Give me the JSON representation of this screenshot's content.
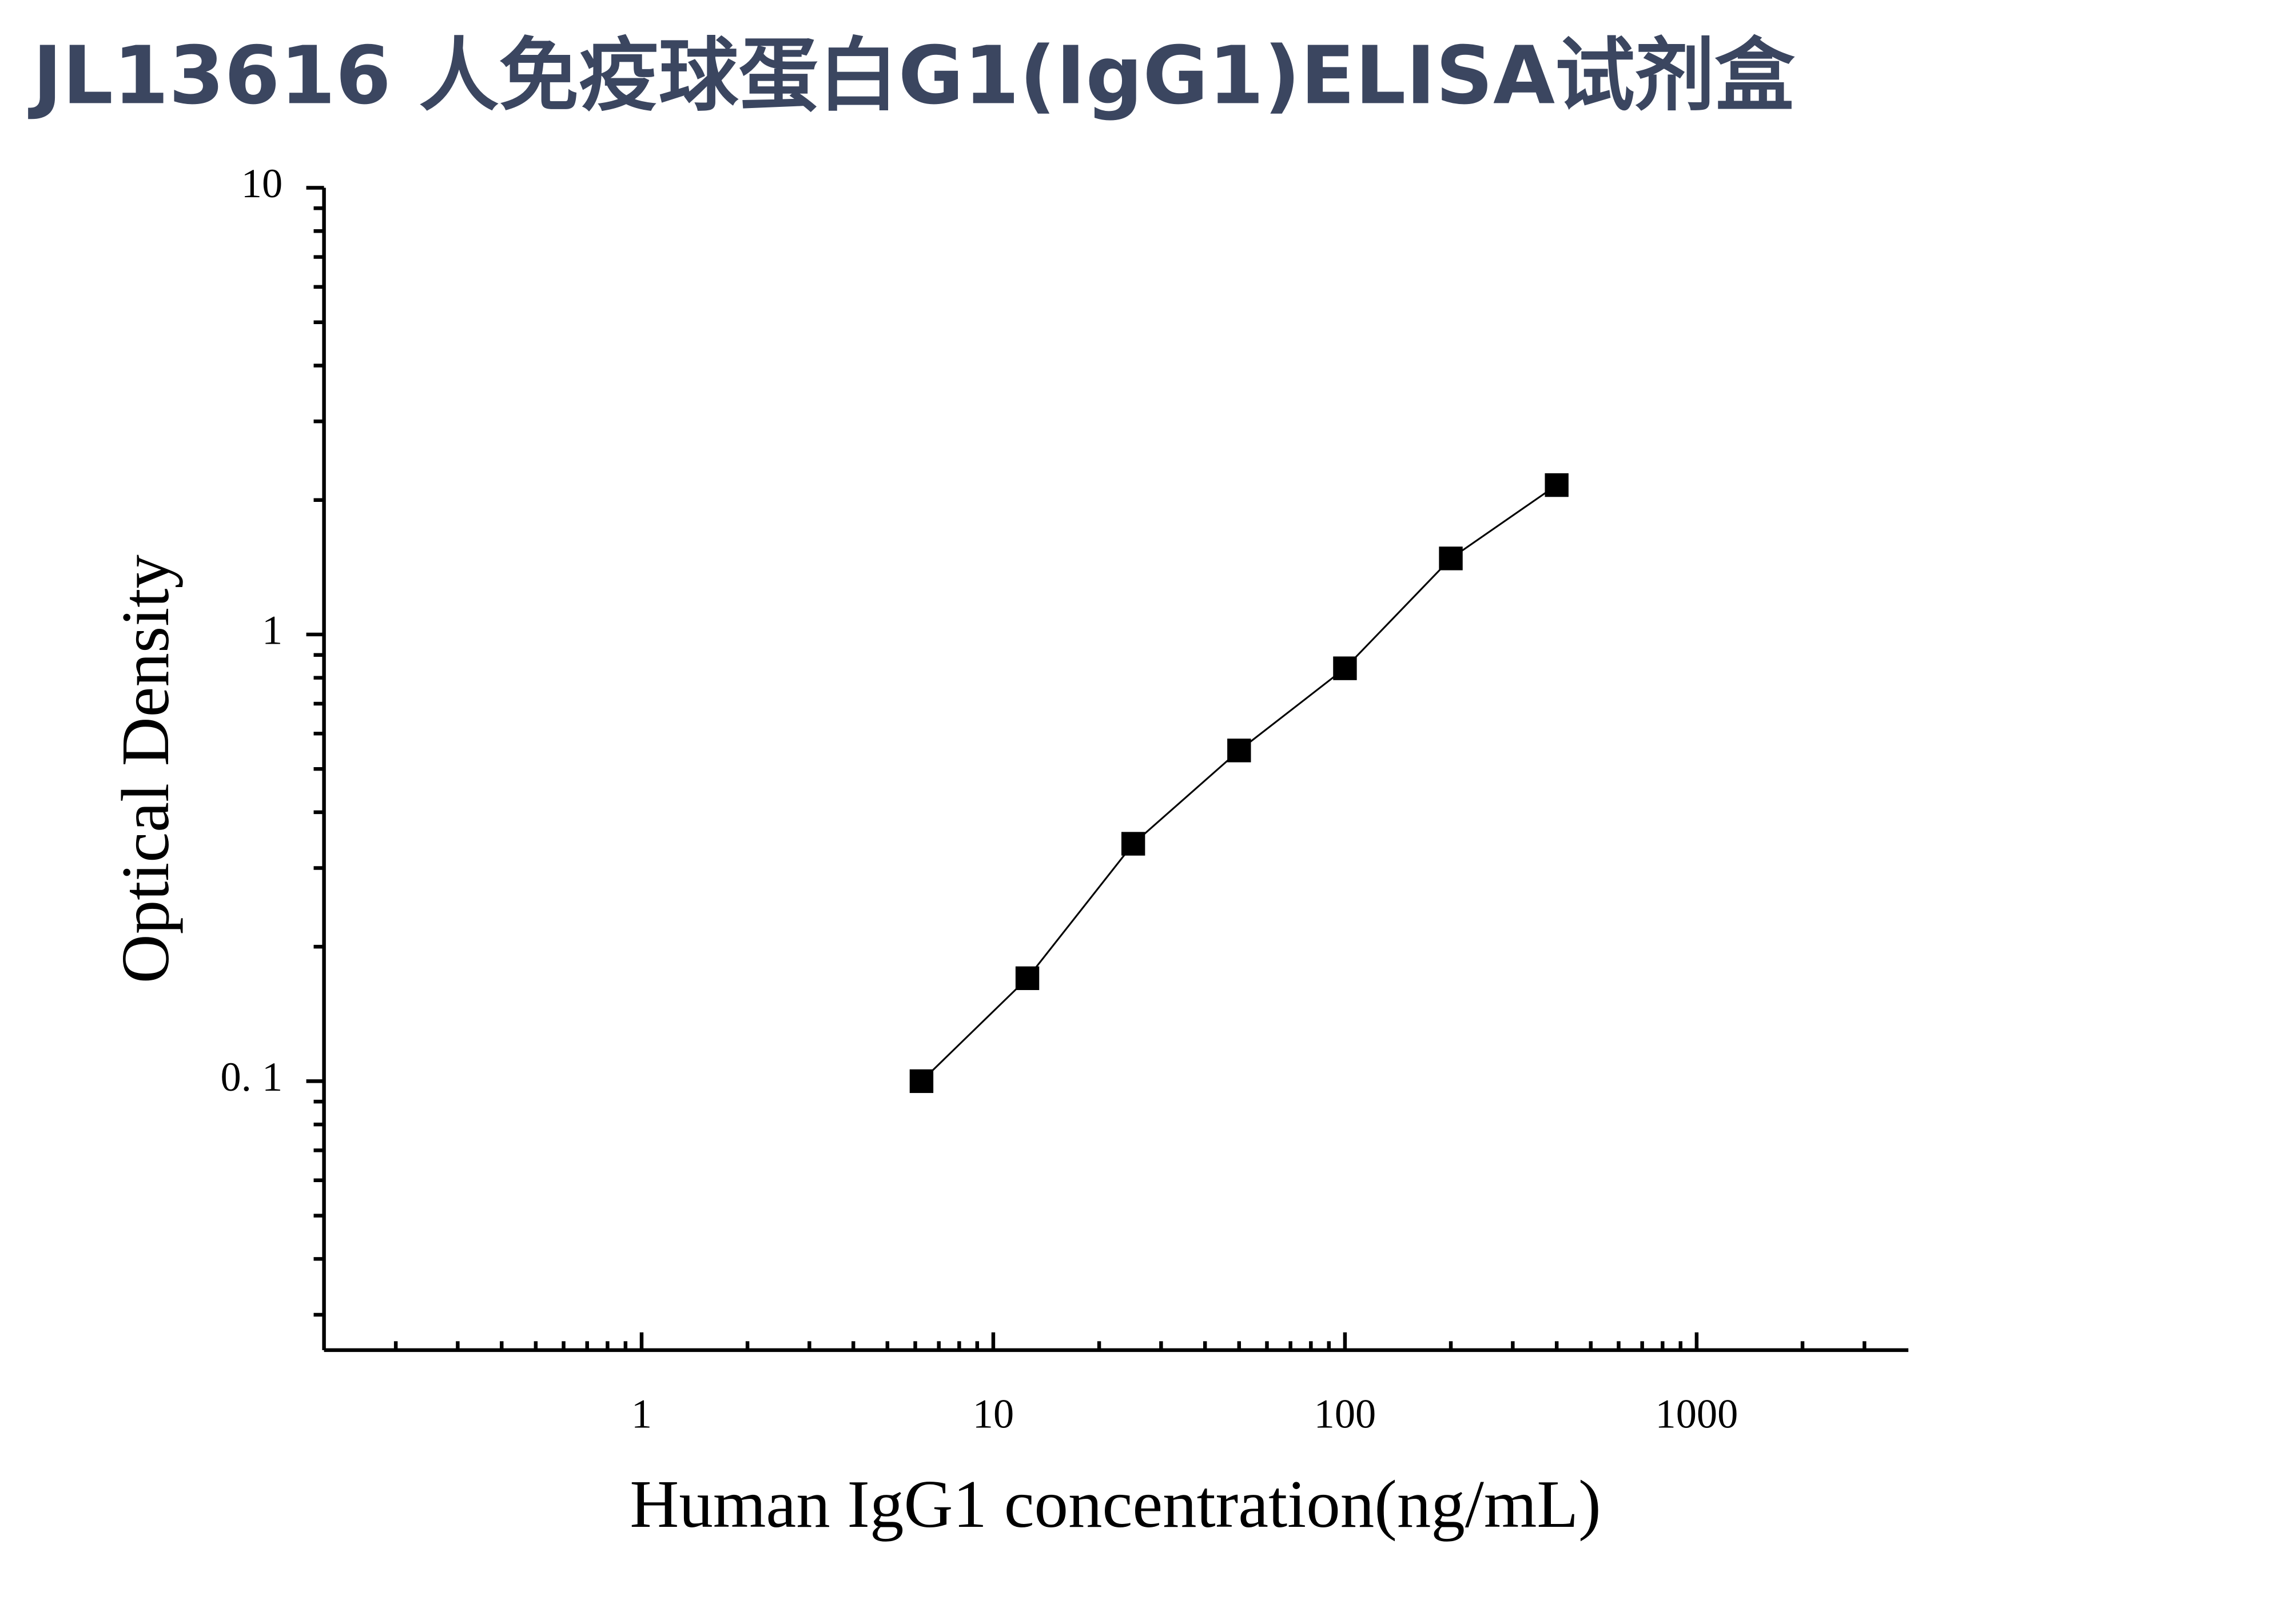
{
  "chart_data": {
    "type": "scatter",
    "title": "JL13616 人免疫球蛋白G1(IgG1)ELISA试剂盒",
    "x_label": "Human IgG1 concentration(ng/mL)",
    "y_label": "Optical Density",
    "x_log": true,
    "y_log": true,
    "xlim": [
      0.125,
      4000
    ],
    "ylim": [
      0.025,
      10
    ],
    "xticks": [
      1,
      10,
      100,
      1000
    ],
    "yticks": [
      {
        "value": 0.1,
        "label": "0. 1"
      },
      1,
      10
    ],
    "xminorticks": [
      0.2,
      0.3,
      0.4,
      0.5,
      0.6,
      0.7,
      0.8,
      0.9,
      2,
      3,
      4,
      5,
      6,
      7,
      8,
      9,
      20,
      30,
      40,
      50,
      60,
      70,
      80,
      90,
      200,
      300,
      400,
      500,
      600,
      700,
      800,
      900,
      2000,
      3000
    ],
    "yminorticks": [
      0.03,
      0.04,
      0.05,
      0.06,
      0.07,
      0.08,
      0.09,
      0.2,
      0.3,
      0.4,
      0.5,
      0.6,
      0.7,
      0.8,
      0.9,
      2,
      3,
      4,
      5,
      6,
      7,
      8,
      9
    ],
    "fit_line": true,
    "color": "#000000",
    "x": [
      6.25,
      12.5,
      25,
      50,
      100,
      200,
      400
    ],
    "values": [
      0.1,
      0.17,
      0.34,
      0.55,
      0.84,
      1.48,
      2.16
    ]
  }
}
